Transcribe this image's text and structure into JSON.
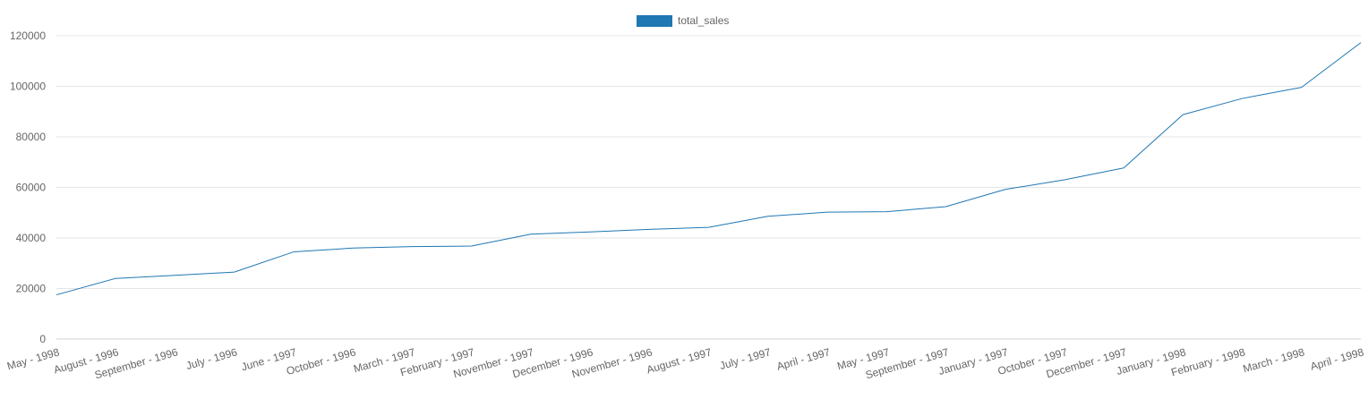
{
  "chart_data": {
    "type": "line",
    "categories": [
      "May - 1998",
      "August - 1996",
      "September - 1996",
      "July - 1996",
      "June - 1997",
      "October - 1996",
      "March - 1997",
      "February - 1997",
      "November - 1997",
      "December - 1996",
      "November - 1996",
      "August - 1997",
      "July - 1997",
      "April - 1997",
      "May - 1997",
      "September - 1997",
      "January - 1997",
      "October - 1997",
      "December - 1997",
      "January - 1998",
      "February - 1998",
      "March - 1998",
      "April - 1998"
    ],
    "series": [
      {
        "name": "total_sales",
        "color": "#1f77b4",
        "values": [
          17500,
          24000,
          25200,
          26500,
          34500,
          36000,
          36600,
          36800,
          41500,
          42400,
          43400,
          44200,
          48600,
          50200,
          50400,
          52400,
          59200,
          63000,
          67700,
          88800,
          95200,
          99600,
          117300
        ]
      }
    ],
    "ylim": [
      0,
      120000
    ],
    "yticks": [
      0,
      20000,
      40000,
      60000,
      80000,
      100000,
      120000
    ],
    "ytick_labels": [
      "0",
      "20000",
      "40000",
      "60000",
      "80000",
      "100000",
      "120000"
    ],
    "title": "",
    "xlabel": "",
    "ylabel": "",
    "grid": true,
    "legend": "top-center"
  }
}
